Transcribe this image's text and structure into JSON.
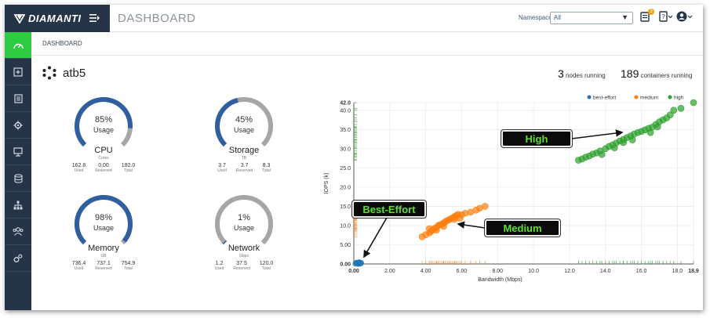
{
  "brand": {
    "name": "DIAMANTI"
  },
  "header": {
    "title": "DASHBOARD",
    "namespace_label": "Namespace",
    "namespace_value": "All",
    "notif_count": "3"
  },
  "breadcrumb": "DASHBOARD",
  "cluster": {
    "name": "atb5",
    "nodes_count": "3",
    "nodes_label": "nodes running",
    "containers_count": "189",
    "containers_label": "containers running"
  },
  "gauges": [
    {
      "pct": "85%",
      "usage": "Usage",
      "title": "CPU",
      "unit": "Cores",
      "used": "162.8",
      "reserved": "0.00",
      "total": "192.0",
      "fraction": 0.85
    },
    {
      "pct": "45%",
      "usage": "Usage",
      "title": "Storage",
      "unit": "TB",
      "used": "3.7",
      "reserved": "3.7",
      "total": "8.3",
      "fraction": 0.45
    },
    {
      "pct": "98%",
      "usage": "Usage",
      "title": "Memory",
      "unit": "GB",
      "used": "736.4",
      "reserved": "737.1",
      "total": "754.9",
      "fraction": 0.98
    },
    {
      "pct": "1%",
      "usage": "Usage",
      "title": "Network",
      "unit": "Gbps",
      "used": "1.2",
      "reserved": "37.5",
      "total": "120.0",
      "fraction": 0.01
    }
  ],
  "stat_labels": {
    "used": "Used",
    "reserved": "Reserved",
    "total": "Total"
  },
  "callouts": {
    "high": "High",
    "medium": "Medium",
    "best_effort": "Best-Effort"
  },
  "colors": {
    "best_effort": "#1f77b4",
    "medium": "#ff7f0e",
    "high": "#2ca02c",
    "active": "#2ecc40",
    "nav": "#253447",
    "gauge_fill": "#2f5f9e",
    "gauge_track": "#a6a6a6"
  },
  "chart_data": {
    "type": "scatter",
    "xlabel": "Bandwidth (Mbps)",
    "ylabel": "IOPS (k)",
    "xlim": [
      0,
      18.9
    ],
    "ylim": [
      0,
      42.0
    ],
    "x_ticks": [
      "0.00",
      "2.00",
      "4.00",
      "6.00",
      "8.00",
      "10.0",
      "12.0",
      "14.0",
      "16.0",
      "18.0",
      "18.9"
    ],
    "y_ticks": [
      "0.00",
      "5.00",
      "10.0",
      "15.0",
      "20.0",
      "25.0",
      "30.0",
      "35.0",
      "40.0",
      "42.0"
    ],
    "legend": [
      "best-effort",
      "medium",
      "high"
    ],
    "legend_position": "top-right",
    "series": [
      {
        "name": "best-effort",
        "points": [
          [
            0.1,
            0.1
          ],
          [
            0.2,
            0.2
          ],
          [
            0.3,
            0.3
          ],
          [
            0.35,
            0.15
          ],
          [
            0.15,
            0.3
          ],
          [
            0.25,
            0.05
          ],
          [
            0.4,
            0.25
          ],
          [
            0.3,
            0.4
          ]
        ]
      },
      {
        "name": "medium",
        "points": [
          [
            3.8,
            7.1
          ],
          [
            4.0,
            7.6
          ],
          [
            4.2,
            8.1
          ],
          [
            4.3,
            8.5
          ],
          [
            4.4,
            8.9
          ],
          [
            4.5,
            9.3
          ],
          [
            4.6,
            9.5
          ],
          [
            4.7,
            10.0
          ],
          [
            4.8,
            10.2
          ],
          [
            4.9,
            10.4
          ],
          [
            5.0,
            10.7
          ],
          [
            5.1,
            11.0
          ],
          [
            5.2,
            11.3
          ],
          [
            5.3,
            11.5
          ],
          [
            5.4,
            11.8
          ],
          [
            5.5,
            12.0
          ],
          [
            5.6,
            12.3
          ],
          [
            5.7,
            12.6
          ],
          [
            5.8,
            12.9
          ],
          [
            5.6,
            11.6
          ],
          [
            5.0,
            9.8
          ],
          [
            4.6,
            8.8
          ],
          [
            6.0,
            12.8
          ],
          [
            6.2,
            13.2
          ],
          [
            6.5,
            13.5
          ],
          [
            6.8,
            14.0
          ],
          [
            7.0,
            14.5
          ],
          [
            7.3,
            15.0
          ],
          [
            4.2,
            9.2
          ],
          [
            5.9,
            11.9
          ]
        ]
      },
      {
        "name": "high",
        "points": [
          [
            12.5,
            27.0
          ],
          [
            12.7,
            27.3
          ],
          [
            12.9,
            27.8
          ],
          [
            13.1,
            28.1
          ],
          [
            13.3,
            28.6
          ],
          [
            13.5,
            28.9
          ],
          [
            13.7,
            29.4
          ],
          [
            14.0,
            30.0
          ],
          [
            14.2,
            30.6
          ],
          [
            14.4,
            31.0
          ],
          [
            14.6,
            31.5
          ],
          [
            14.8,
            32.0
          ],
          [
            15.0,
            32.4
          ],
          [
            15.2,
            32.9
          ],
          [
            15.4,
            33.3
          ],
          [
            15.6,
            33.8
          ],
          [
            15.8,
            34.2
          ],
          [
            16.0,
            34.5
          ],
          [
            16.2,
            34.9
          ],
          [
            16.4,
            35.3
          ],
          [
            16.6,
            35.6
          ],
          [
            16.8,
            36.3
          ],
          [
            17.0,
            37.0
          ],
          [
            17.2,
            37.5
          ],
          [
            17.4,
            38.0
          ],
          [
            17.6,
            38.8
          ],
          [
            17.8,
            40.0
          ],
          [
            18.2,
            40.5
          ],
          [
            18.9,
            42.0
          ],
          [
            15.0,
            31.6
          ],
          [
            14.5,
            30.2
          ],
          [
            16.5,
            34.2
          ],
          [
            13.8,
            28.5
          ],
          [
            15.5,
            32.3
          ],
          [
            16.9,
            35.7
          ]
        ]
      }
    ]
  }
}
